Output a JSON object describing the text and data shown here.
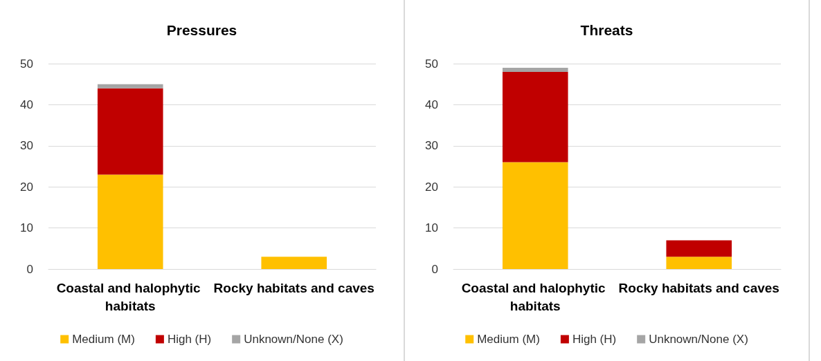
{
  "chart_data": [
    {
      "type": "bar",
      "title": "Pressures",
      "categories": [
        "Coastal and halophytic habitats",
        "Rocky habitats and caves"
      ],
      "stacked": true,
      "ylim": [
        0,
        50
      ],
      "yticks": [
        0,
        10,
        20,
        30,
        40,
        50
      ],
      "grid": "y",
      "legend": "bottom",
      "series": [
        {
          "name": "Medium (M)",
          "color": "#ffc000",
          "values": [
            23,
            3
          ]
        },
        {
          "name": "High (H)",
          "color": "#c00000",
          "values": [
            21,
            0
          ]
        },
        {
          "name": "Unknown/None (X)",
          "color": "#a5a5a5",
          "values": [
            1,
            0
          ]
        }
      ]
    },
    {
      "type": "bar",
      "title": "Threats",
      "categories": [
        "Coastal and halophytic habitats",
        "Rocky habitats and caves"
      ],
      "stacked": true,
      "ylim": [
        0,
        50
      ],
      "yticks": [
        0,
        10,
        20,
        30,
        40,
        50
      ],
      "grid": "y",
      "legend": "bottom",
      "series": [
        {
          "name": "Medium (M)",
          "color": "#ffc000",
          "values": [
            26,
            3
          ]
        },
        {
          "name": "High (H)",
          "color": "#c00000",
          "values": [
            22,
            4
          ]
        },
        {
          "name": "Unknown/None (X)",
          "color": "#a5a5a5",
          "values": [
            1,
            0
          ]
        }
      ]
    }
  ]
}
